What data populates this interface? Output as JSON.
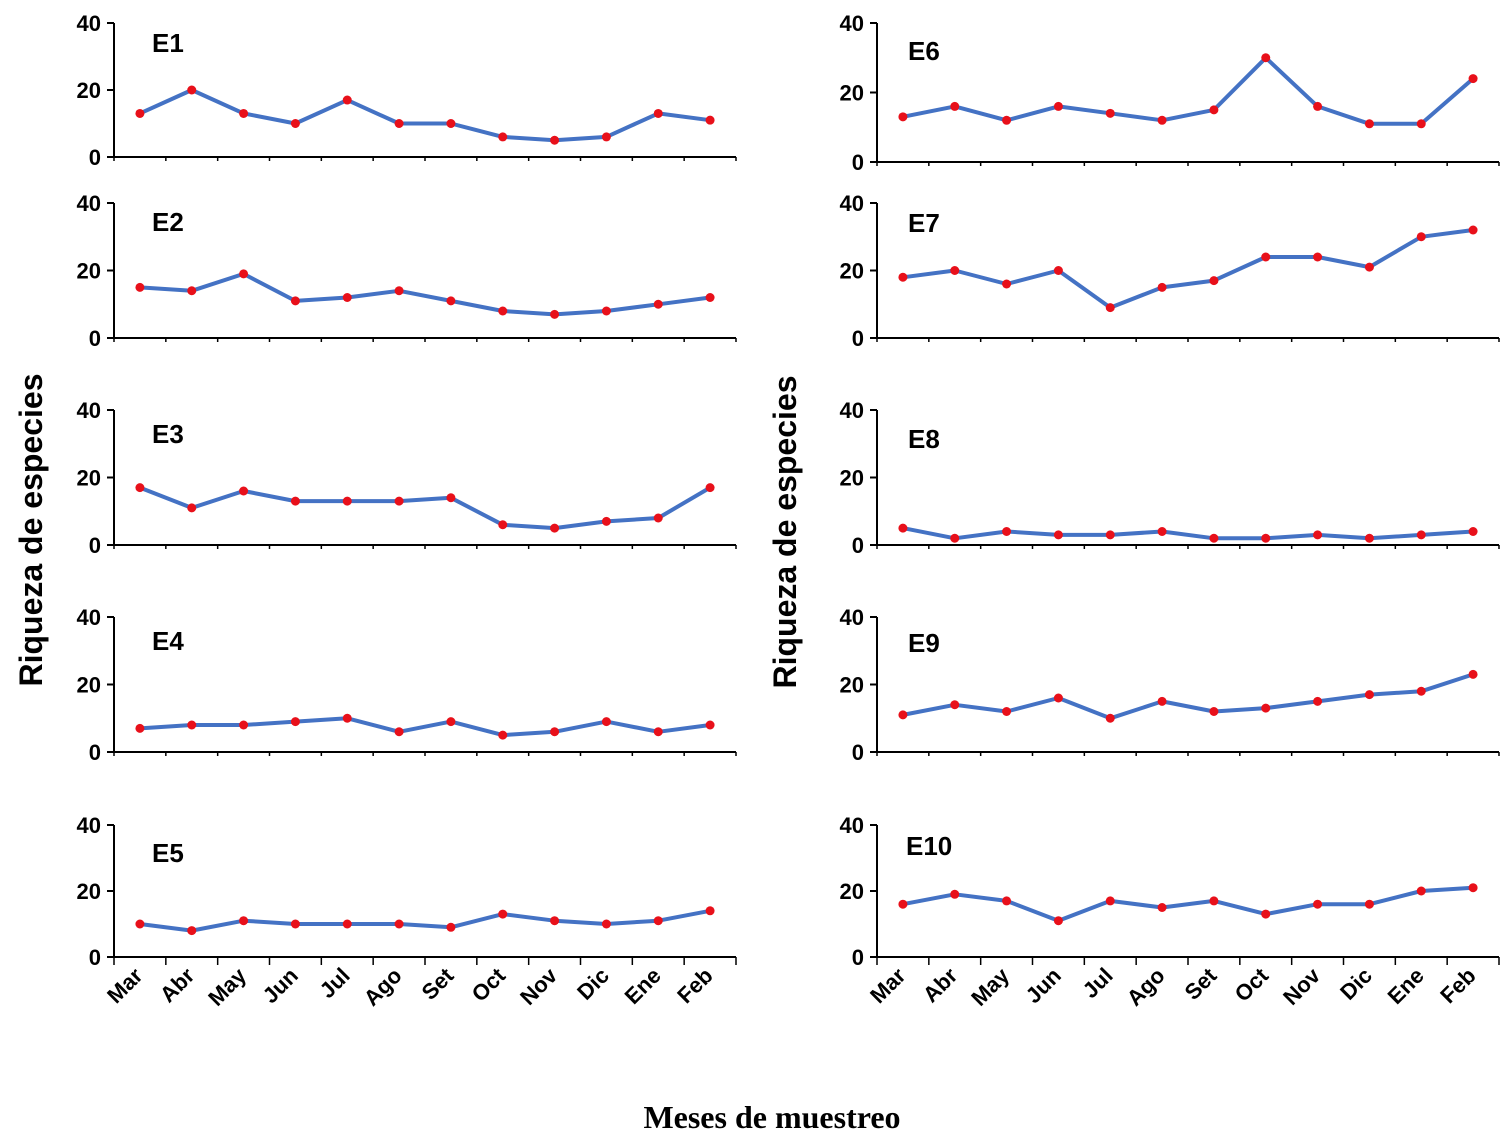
{
  "figure": {
    "ylabel_left": "Riqueza de especies",
    "ylabel_right": "Riqueza de especies",
    "xlabel": "Meses de muestreo"
  },
  "colors": {
    "line": "#4472C4",
    "marker": "#E8101A",
    "axis": "#000000"
  },
  "chart_data": {
    "type": "line",
    "categories": [
      "Mar",
      "Abr",
      "May",
      "Jun",
      "Jul",
      "Ago",
      "Set",
      "Oct",
      "Nov",
      "Dic",
      "Ene",
      "Feb"
    ],
    "ylim": [
      0,
      40
    ],
    "yticks": [
      "0",
      "20",
      "40"
    ],
    "grid": false,
    "panels": [
      {
        "name": "E1",
        "values": [
          13,
          20,
          13,
          10,
          17,
          10,
          10,
          6,
          5,
          6,
          13,
          11
        ]
      },
      {
        "name": "E2",
        "values": [
          15,
          14,
          19,
          11,
          12,
          14,
          11,
          8,
          7,
          8,
          10,
          12
        ]
      },
      {
        "name": "E3",
        "values": [
          17,
          11,
          16,
          13,
          13,
          13,
          14,
          6,
          5,
          7,
          8,
          17
        ]
      },
      {
        "name": "E4",
        "values": [
          7,
          8,
          8,
          9,
          10,
          6,
          9,
          5,
          6,
          9,
          6,
          8
        ]
      },
      {
        "name": "E5",
        "values": [
          10,
          8,
          11,
          10,
          10,
          10,
          9,
          13,
          11,
          10,
          11,
          14
        ]
      },
      {
        "name": "E6",
        "values": [
          13,
          16,
          12,
          16,
          14,
          12,
          15,
          30,
          16,
          11,
          11,
          24
        ]
      },
      {
        "name": "E7",
        "values": [
          18,
          20,
          16,
          20,
          9,
          15,
          17,
          24,
          24,
          21,
          30,
          32
        ]
      },
      {
        "name": "E8",
        "values": [
          5,
          2,
          4,
          3,
          3,
          4,
          2,
          2,
          3,
          2,
          3,
          4
        ]
      },
      {
        "name": "E9",
        "values": [
          11,
          14,
          12,
          16,
          10,
          15,
          12,
          13,
          15,
          17,
          18,
          23
        ]
      },
      {
        "name": "E10",
        "values": [
          16,
          19,
          17,
          11,
          17,
          15,
          17,
          13,
          16,
          16,
          20,
          21
        ]
      }
    ]
  }
}
